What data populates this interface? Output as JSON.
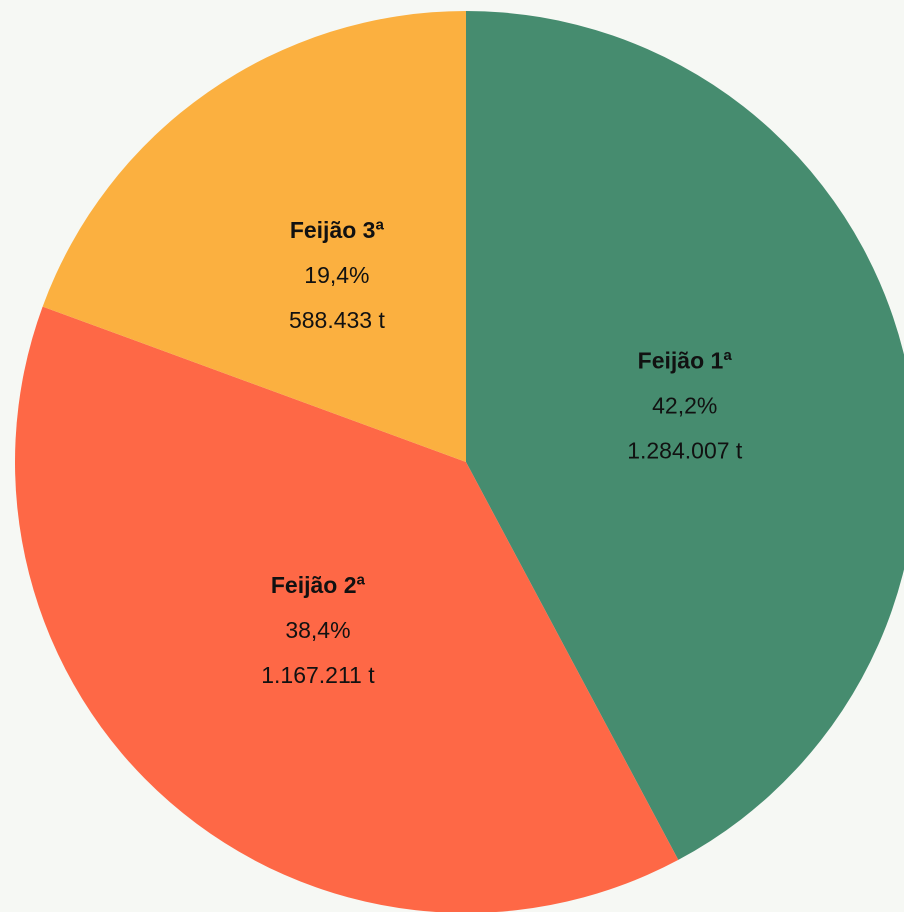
{
  "chart_data": {
    "type": "pie",
    "categories": [
      "Feijão 1ª",
      "Feijão 2ª",
      "Feijão 3ª"
    ],
    "values": [
      42.2,
      38.4,
      19.4
    ],
    "value_labels": [
      "42,2%",
      "38,4%",
      "19,4%"
    ],
    "amounts": [
      1284007,
      1167211,
      588433
    ],
    "amount_labels": [
      "1.284.007 t",
      "1.167.211 t",
      "588.433 t"
    ],
    "colors": [
      "#468c6f",
      "#fe6846",
      "#fbb040"
    ]
  }
}
